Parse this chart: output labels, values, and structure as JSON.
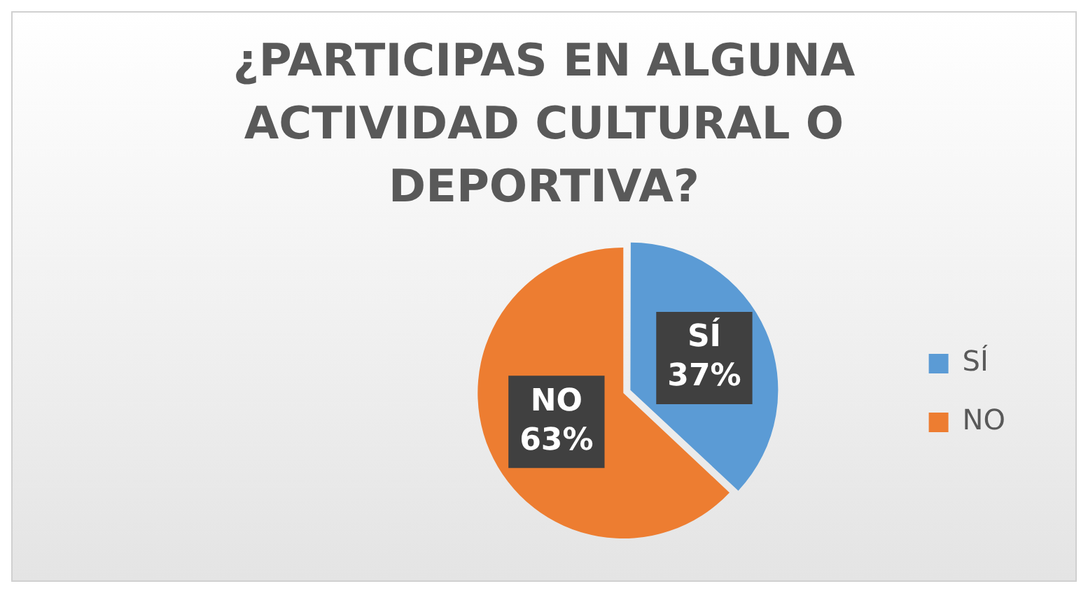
{
  "chart_data": {
    "type": "pie",
    "title": "¿PARTICIPAS EN ALGUNA ACTIVIDAD CULTURAL O DEPORTIVA?",
    "categories": [
      "SÍ",
      "NO"
    ],
    "values": [
      37,
      63
    ],
    "value_labels": [
      "37%",
      "63%"
    ],
    "colors": [
      "#5b9bd5",
      "#ed7d31"
    ],
    "legend": "right"
  }
}
